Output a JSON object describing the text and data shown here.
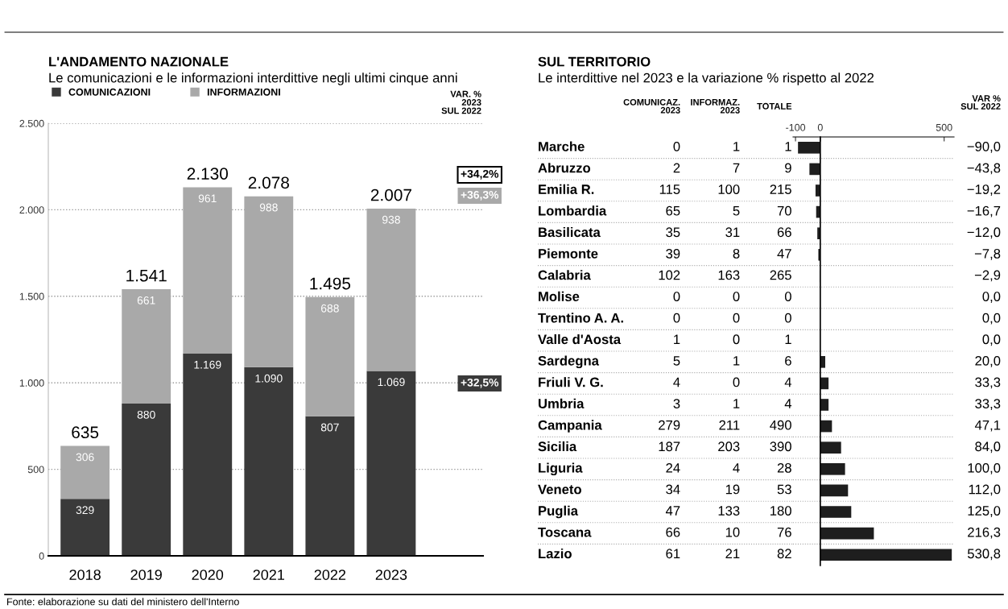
{
  "chart_data": [
    {
      "type": "bar",
      "stacked": true,
      "title": "L'ANDAMENTO NAZIONALE",
      "subtitle": "Le comunicazioni e le informazioni interdittive negli ultimi cinque anni",
      "categories": [
        "2018",
        "2019",
        "2020",
        "2021",
        "2022",
        "2023"
      ],
      "series": [
        {
          "name": "COMUNICAZIONI",
          "color": "#3a3a3a",
          "values": [
            329,
            880,
            1169,
            1090,
            807,
            1069
          ],
          "value_labels": [
            "329",
            "880",
            "1.169",
            "1.090",
            "807",
            "1.069"
          ]
        },
        {
          "name": "INFORMAZIONI",
          "color": "#a9a9a9",
          "values": [
            306,
            661,
            961,
            988,
            688,
            938
          ],
          "value_labels": [
            "306",
            "661",
            "961",
            "988",
            "688",
            "938"
          ]
        }
      ],
      "totals": [
        "635",
        "1.541",
        "2.130",
        "2.078",
        "1.495",
        "2.007"
      ],
      "ylim": [
        0,
        2500
      ],
      "yticks": [
        0,
        500,
        {
          "value": 1000,
          "label": "1.000"
        },
        {
          "value": 1500,
          "label": "1.500"
        },
        {
          "value": 2000,
          "label": "2.000"
        },
        {
          "value": 2500,
          "label": "2.500"
        }
      ],
      "grid": "y",
      "legend": "top left",
      "annotations": [
        "VAR. %\n2023\nSUL 2022",
        "Fonte: elaborazione su dati del ministero dell'Interno",
        "+34,2%",
        "+36,3%",
        "+32,5%"
      ]
    },
    {
      "type": "other",
      "data_labels": true,
      "title": "SUL TERRITORIO",
      "subtitle": "Le interdittive nel 2023 e la variazione % rispetto al 2022",
      "categories": [
        "Marche",
        "Abruzzo",
        "Emilia R.",
        "Lombardia",
        "Basilicata",
        "Piemonte",
        "Calabria",
        "Molise",
        "Trentino A. A.",
        "Valle d'Aosta",
        "Sardegna",
        "Friuli V. G.",
        "Umbria",
        "Campania",
        "Sicilia",
        "Liguria",
        "Veneto",
        "Puglia",
        "Toscana",
        "Lazio"
      ],
      "series": [
        {
          "name": "COMUNICAZ.\n2023",
          "values": [
            0,
            2,
            115,
            65,
            35,
            39,
            102,
            0,
            0,
            1,
            5,
            4,
            3,
            279,
            187,
            24,
            34,
            47,
            66,
            61
          ]
        },
        {
          "name": "INFORMAZ.\n2023",
          "values": [
            1,
            7,
            100,
            5,
            31,
            8,
            163,
            0,
            0,
            0,
            1,
            0,
            1,
            211,
            203,
            4,
            19,
            133,
            10,
            21
          ]
        },
        {
          "name": "TOTALE",
          "values": [
            1,
            9,
            215,
            70,
            66,
            47,
            265,
            0,
            0,
            1,
            6,
            4,
            4,
            490,
            390,
            28,
            53,
            180,
            76,
            82
          ]
        }
      ]
    },
    {
      "type": "bar",
      "orientation": "horizontal",
      "color": "#1e1e1e",
      "categories": [
        null,
        null,
        null,
        null,
        null,
        null,
        null,
        null,
        null,
        null,
        null,
        null,
        null,
        null,
        null,
        null,
        null,
        null,
        null,
        null
      ],
      "values": [
        -90.0,
        -43.8,
        -19.2,
        -16.7,
        -12.0,
        -7.8,
        -2.9,
        0.0,
        0.0,
        0.0,
        20.0,
        33.3,
        33.3,
        47.1,
        84.0,
        100.0,
        112.0,
        125.0,
        216.3,
        530.8
      ],
      "value_labels": [
        "−90,0",
        "−43,8",
        "−19,2",
        "−16,7",
        "−12,0",
        "−7,8",
        "−2,9",
        "0,0",
        "0,0",
        "0,0",
        "20,0",
        "33,3",
        "33,3",
        "47,1",
        "84,0",
        "100,0",
        "112,0",
        "125,0",
        "216,3",
        "530,8"
      ],
      "xlim": [
        -110,
        540
      ],
      "xticks": [
        -100,
        0,
        500
      ],
      "tick_labels": "x",
      "annotations": [
        "VAR %\nSUL 2022"
      ]
    }
  ]
}
